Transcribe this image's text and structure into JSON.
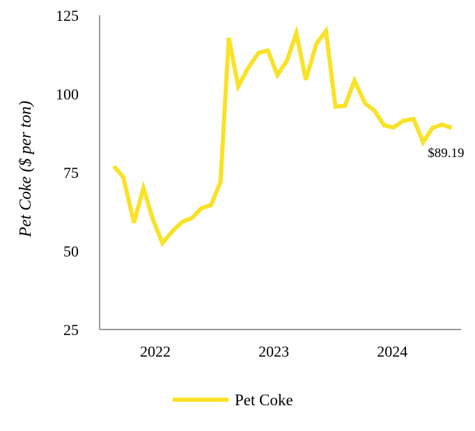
{
  "chart_data": {
    "type": "line",
    "title": "",
    "xlabel": "",
    "ylabel": "Pet Coke ($ per ton)",
    "ylim": [
      25,
      125
    ],
    "yticks": [
      25,
      50,
      75,
      100,
      125
    ],
    "xlim": [
      2021.53,
      2024.58
    ],
    "xticks": [
      {
        "value": 2022,
        "label": "2022"
      },
      {
        "value": 2023,
        "label": "2023"
      },
      {
        "value": 2024,
        "label": "2024"
      }
    ],
    "grid": false,
    "legend_position": "bottom-center",
    "colors": {
      "series": "#f9e227",
      "axis": "#999999",
      "text": "#000000"
    },
    "series": [
      {
        "name": "Pet Coke",
        "x": [
          2021.65,
          2021.73,
          2021.82,
          2021.9,
          2021.98,
          2022.06,
          2022.15,
          2022.23,
          2022.31,
          2022.39,
          2022.47,
          2022.55,
          2022.62,
          2022.7,
          2022.78,
          2022.87,
          2022.95,
          2023.03,
          2023.11,
          2023.19,
          2023.27,
          2023.36,
          2023.44,
          2023.52,
          2023.6,
          2023.68,
          2023.77,
          2023.85,
          2023.93,
          2024.01,
          2024.09,
          2024.18,
          2024.26,
          2024.34,
          2024.42,
          2024.5
        ],
        "values": [
          77,
          73.5,
          59,
          70,
          60,
          52.5,
          56.5,
          59.3,
          60.5,
          63.6,
          64.6,
          72,
          117.8,
          102.4,
          108,
          113,
          113.8,
          106,
          110.5,
          119.3,
          104.5,
          116,
          120,
          95.9,
          96.2,
          104.2,
          97,
          94.6,
          90,
          89.3,
          91.4,
          92,
          84.6,
          89.2,
          90.2,
          89.19
        ]
      }
    ],
    "annotations": [
      {
        "text": "$89.19",
        "x": 2024.5,
        "y": 89.19
      }
    ]
  }
}
